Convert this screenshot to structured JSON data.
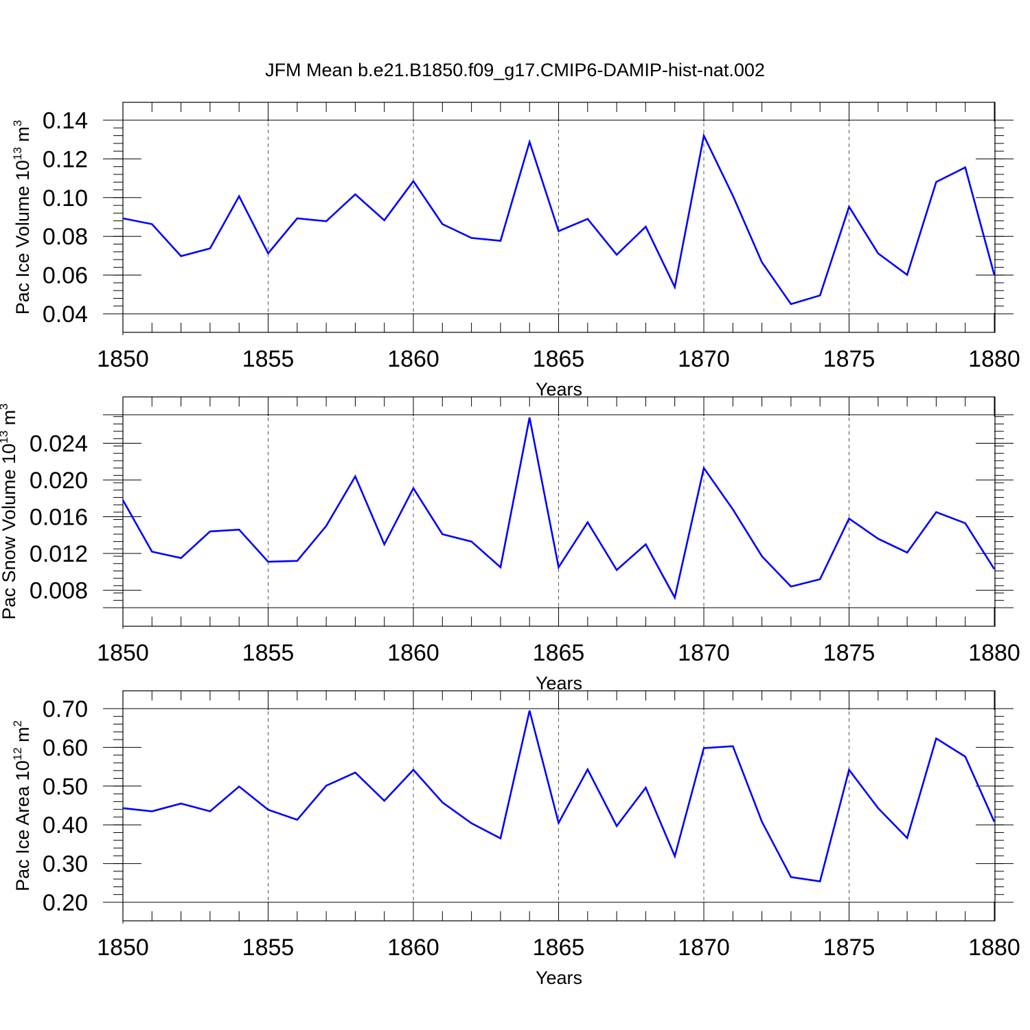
{
  "figure": {
    "title": "JFM Mean b.e21.B1850.f09_g17.CMIP6-DAMIP-hist-nat.002",
    "line_color": "#0000ff"
  },
  "chart_data": [
    {
      "type": "line",
      "xlabel": "Years",
      "ylabel_main": "Pac Ice Volume 10",
      "ylabel_exp": "13",
      "ylabel_unit": "m",
      "ylabel_unit_exp": "3",
      "xlim": [
        1850,
        1880
      ],
      "ylim": [
        0.04,
        0.14
      ],
      "xticks": [
        "1850",
        "1855",
        "1860",
        "1865",
        "1870",
        "1875",
        "1880"
      ],
      "yticks": [
        "0.04",
        "0.06",
        "0.08",
        "0.10",
        "0.12",
        "0.14"
      ],
      "x": [
        1850,
        1851,
        1852,
        1853,
        1854,
        1855,
        1856,
        1857,
        1858,
        1859,
        1860,
        1861,
        1862,
        1863,
        1864,
        1865,
        1866,
        1867,
        1868,
        1869,
        1870,
        1871,
        1872,
        1873,
        1874,
        1875,
        1876,
        1877,
        1878,
        1879,
        1880
      ],
      "values": [
        0.0893,
        0.0863,
        0.0698,
        0.0738,
        0.1007,
        0.0712,
        0.0893,
        0.0878,
        0.1017,
        0.0883,
        0.1085,
        0.0863,
        0.0792,
        0.0777,
        0.1288,
        0.0827,
        0.089,
        0.0705,
        0.085,
        0.0538,
        0.132,
        0.101,
        0.0666,
        0.045,
        0.0495,
        0.0953,
        0.0712,
        0.0601,
        0.1081,
        0.1156,
        0.0601
      ],
      "grid": "vertical dashed at major x ticks"
    },
    {
      "type": "line",
      "xlabel": "Years",
      "ylabel_main": "Pac Snow Volume 10",
      "ylabel_exp": "13",
      "ylabel_unit": "m",
      "ylabel_unit_exp": "3",
      "xlim": [
        1850,
        1880
      ],
      "ylim": [
        0.0061,
        0.0271
      ],
      "xticks": [
        "1850",
        "1855",
        "1860",
        "1865",
        "1870",
        "1875",
        "1880"
      ],
      "yticks": [
        "0.008",
        "0.012",
        "0.016",
        "0.020",
        "0.024"
      ],
      "x": [
        1850,
        1851,
        1852,
        1853,
        1854,
        1855,
        1856,
        1857,
        1858,
        1859,
        1860,
        1861,
        1862,
        1863,
        1864,
        1865,
        1866,
        1867,
        1868,
        1869,
        1870,
        1871,
        1872,
        1873,
        1874,
        1875,
        1876,
        1877,
        1878,
        1879,
        1880
      ],
      "values": [
        0.0178,
        0.0122,
        0.0115,
        0.0144,
        0.0146,
        0.0111,
        0.0112,
        0.015,
        0.0204,
        0.013,
        0.0191,
        0.0141,
        0.0133,
        0.0105,
        0.0268,
        0.0105,
        0.0154,
        0.0102,
        0.013,
        0.0072,
        0.0213,
        0.0168,
        0.0117,
        0.0084,
        0.0092,
        0.0158,
        0.0136,
        0.0121,
        0.0165,
        0.0153,
        0.0103
      ],
      "grid": "vertical dashed at major x ticks"
    },
    {
      "type": "line",
      "xlabel": "Years",
      "ylabel_main": "Pac Ice Area 10",
      "ylabel_exp": "12",
      "ylabel_unit": "m",
      "ylabel_unit_exp": "2",
      "xlim": [
        1850,
        1880
      ],
      "ylim": [
        0.2,
        0.7
      ],
      "xticks": [
        "1850",
        "1855",
        "1860",
        "1865",
        "1870",
        "1875",
        "1880"
      ],
      "yticks": [
        "0.20",
        "0.30",
        "0.40",
        "0.50",
        "0.60",
        "0.70"
      ],
      "x": [
        1850,
        1851,
        1852,
        1853,
        1854,
        1855,
        1856,
        1857,
        1858,
        1859,
        1860,
        1861,
        1862,
        1863,
        1864,
        1865,
        1866,
        1867,
        1868,
        1869,
        1870,
        1871,
        1872,
        1873,
        1874,
        1875,
        1876,
        1877,
        1878,
        1879,
        1880
      ],
      "values": [
        0.443,
        0.435,
        0.455,
        0.435,
        0.499,
        0.439,
        0.413,
        0.501,
        0.535,
        0.462,
        0.542,
        0.458,
        0.404,
        0.365,
        0.695,
        0.405,
        0.543,
        0.397,
        0.496,
        0.319,
        0.598,
        0.603,
        0.408,
        0.265,
        0.254,
        0.542,
        0.443,
        0.366,
        0.623,
        0.576,
        0.408
      ],
      "grid": "vertical dashed at major x ticks"
    }
  ]
}
